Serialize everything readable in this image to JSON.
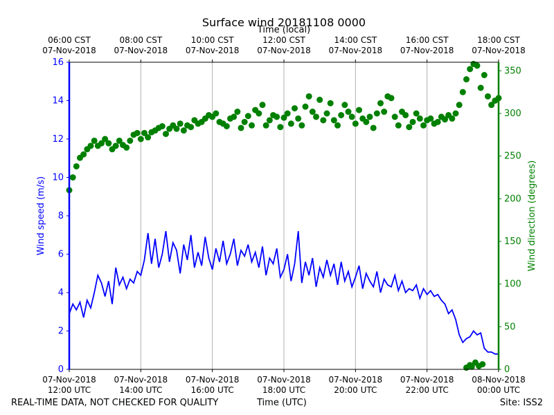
{
  "chart_data": {
    "type": "line",
    "title": "Surface wind 20181108 0000",
    "top_axis_label": "Time (local)",
    "xlabel": "Time (UTC)",
    "ylabel_left": "Wind speed (m/s)",
    "ylabel_right": "Wind direction (degrees)",
    "xlim_hours_utc": [
      12,
      24
    ],
    "ylim_left": [
      0,
      16
    ],
    "ylim_right": [
      0,
      360
    ],
    "left_ticks": [
      "0",
      "2",
      "4",
      "6",
      "8",
      "10",
      "12",
      "14",
      "16"
    ],
    "left_tick_values": [
      0,
      2,
      4,
      6,
      8,
      10,
      12,
      14,
      16
    ],
    "right_ticks": [
      "0",
      "50",
      "100",
      "150",
      "200",
      "250",
      "300",
      "350"
    ],
    "right_tick_values": [
      0,
      50,
      100,
      150,
      200,
      250,
      300,
      350
    ],
    "bottom_ticks": [
      {
        "hour": 12,
        "line1": "07-Nov-2018",
        "line2": "12:00 UTC"
      },
      {
        "hour": 14,
        "line1": "07-Nov-2018",
        "line2": "14:00 UTC"
      },
      {
        "hour": 16,
        "line1": "07-Nov-2018",
        "line2": "16:00 UTC"
      },
      {
        "hour": 18,
        "line1": "07-Nov-2018",
        "line2": "18:00 UTC"
      },
      {
        "hour": 20,
        "line1": "07-Nov-2018",
        "line2": "20:00 UTC"
      },
      {
        "hour": 22,
        "line1": "07-Nov-2018",
        "line2": "22:00 UTC"
      },
      {
        "hour": 24,
        "line1": "08-Nov-2018",
        "line2": "00:00 UTC"
      }
    ],
    "top_ticks": [
      {
        "hour": 12,
        "line1": "06:00 CST",
        "line2": "07-Nov-2018"
      },
      {
        "hour": 14,
        "line1": "08:00 CST",
        "line2": "07-Nov-2018"
      },
      {
        "hour": 16,
        "line1": "10:00 CST",
        "line2": "07-Nov-2018"
      },
      {
        "hour": 18,
        "line1": "12:00 CST",
        "line2": "07-Nov-2018"
      },
      {
        "hour": 20,
        "line1": "14:00 CST",
        "line2": "07-Nov-2018"
      },
      {
        "hour": 22,
        "line1": "16:00 CST",
        "line2": "07-Nov-2018"
      },
      {
        "hour": 24,
        "line1": "18:00 CST",
        "line2": "07-Nov-2018"
      }
    ],
    "series": [
      {
        "name": "Wind speed",
        "axis": "left",
        "style": "line",
        "color": "#0000ff",
        "x_hours": [
          12.0,
          12.1,
          12.2,
          12.3,
          12.4,
          12.5,
          12.6,
          12.7,
          12.8,
          12.9,
          13.0,
          13.1,
          13.2,
          13.3,
          13.4,
          13.5,
          13.6,
          13.7,
          13.8,
          13.9,
          14.0,
          14.1,
          14.2,
          14.3,
          14.4,
          14.5,
          14.6,
          14.7,
          14.8,
          14.9,
          15.0,
          15.1,
          15.2,
          15.3,
          15.4,
          15.5,
          15.6,
          15.7,
          15.8,
          15.9,
          16.0,
          16.1,
          16.2,
          16.3,
          16.4,
          16.5,
          16.6,
          16.7,
          16.8,
          16.9,
          17.0,
          17.1,
          17.2,
          17.3,
          17.4,
          17.5,
          17.6,
          17.7,
          17.8,
          17.9,
          18.0,
          18.1,
          18.2,
          18.3,
          18.4,
          18.5,
          18.6,
          18.7,
          18.8,
          18.9,
          19.0,
          19.1,
          19.2,
          19.3,
          19.4,
          19.5,
          19.6,
          19.7,
          19.8,
          19.9,
          20.0,
          20.1,
          20.2,
          20.3,
          20.4,
          20.5,
          20.6,
          20.7,
          20.8,
          20.9,
          21.0,
          21.1,
          21.2,
          21.3,
          21.4,
          21.5,
          21.6,
          21.7,
          21.8,
          21.9,
          22.0,
          22.1,
          22.2,
          22.3,
          22.4,
          22.5,
          22.6,
          22.7,
          22.8,
          22.9,
          23.0,
          23.1,
          23.2,
          23.3,
          23.4,
          23.5,
          23.6,
          23.7,
          23.8,
          23.9,
          24.0
        ],
        "values": [
          2.9,
          3.4,
          3.1,
          3.5,
          2.7,
          3.6,
          3.2,
          4.0,
          4.9,
          4.5,
          3.8,
          4.6,
          3.4,
          5.3,
          4.4,
          4.8,
          4.2,
          4.7,
          4.5,
          5.1,
          4.9,
          5.7,
          7.1,
          5.5,
          6.8,
          5.3,
          6.0,
          7.2,
          5.6,
          6.6,
          6.2,
          5.0,
          6.5,
          5.7,
          7.0,
          5.3,
          6.1,
          5.4,
          6.9,
          5.8,
          5.2,
          6.3,
          5.6,
          6.7,
          5.5,
          6.0,
          6.8,
          5.4,
          6.2,
          5.9,
          6.5,
          5.6,
          6.1,
          5.3,
          6.4,
          4.9,
          5.8,
          5.5,
          6.3,
          4.8,
          5.2,
          6.0,
          4.6,
          5.5,
          7.2,
          4.5,
          5.6,
          4.9,
          5.8,
          4.3,
          5.3,
          4.8,
          5.7,
          4.9,
          5.5,
          4.4,
          5.6,
          4.6,
          5.1,
          4.3,
          4.8,
          5.4,
          4.2,
          5.0,
          4.6,
          4.3,
          5.1,
          4.0,
          4.7,
          4.4,
          4.3,
          4.9,
          4.1,
          4.6,
          4.0,
          4.2,
          4.1,
          4.4,
          3.7,
          4.2,
          3.9,
          4.1,
          3.8,
          3.9,
          3.6,
          3.4,
          2.9,
          3.1,
          2.6,
          1.8,
          1.4,
          1.6,
          1.7,
          2.0,
          1.8,
          1.9,
          1.1,
          0.9,
          0.9,
          0.8,
          0.8
        ]
      },
      {
        "name": "Wind direction",
        "axis": "right",
        "style": "markers",
        "color": "#008000",
        "x_hours": [
          12.0,
          12.1,
          12.2,
          12.3,
          12.4,
          12.5,
          12.6,
          12.7,
          12.8,
          12.9,
          13.0,
          13.1,
          13.2,
          13.3,
          13.4,
          13.5,
          13.6,
          13.7,
          13.8,
          13.9,
          14.0,
          14.1,
          14.2,
          14.3,
          14.4,
          14.5,
          14.6,
          14.7,
          14.8,
          14.9,
          15.0,
          15.1,
          15.2,
          15.3,
          15.4,
          15.5,
          15.6,
          15.7,
          15.8,
          15.9,
          16.0,
          16.1,
          16.2,
          16.3,
          16.4,
          16.5,
          16.6,
          16.7,
          16.8,
          16.9,
          17.0,
          17.1,
          17.2,
          17.3,
          17.4,
          17.5,
          17.6,
          17.7,
          17.8,
          17.9,
          18.0,
          18.1,
          18.2,
          18.3,
          18.4,
          18.5,
          18.6,
          18.7,
          18.8,
          18.9,
          19.0,
          19.1,
          19.2,
          19.3,
          19.4,
          19.5,
          19.6,
          19.7,
          19.8,
          19.9,
          20.0,
          20.1,
          20.2,
          20.3,
          20.4,
          20.5,
          20.6,
          20.7,
          20.8,
          20.9,
          21.0,
          21.1,
          21.2,
          21.3,
          21.4,
          21.5,
          21.6,
          21.7,
          21.8,
          21.9,
          22.0,
          22.1,
          22.2,
          22.3,
          22.4,
          22.5,
          22.6,
          22.7,
          22.8,
          22.9,
          23.0,
          23.1,
          23.2,
          23.3,
          23.4,
          23.5,
          23.6,
          23.7,
          23.8,
          23.9,
          24.0
        ],
        "values": [
          210,
          225,
          238,
          248,
          252,
          258,
          262,
          268,
          262,
          265,
          270,
          265,
          258,
          262,
          268,
          263,
          260,
          268,
          275,
          277,
          270,
          277,
          272,
          278,
          280,
          283,
          285,
          276,
          282,
          286,
          282,
          288,
          280,
          286,
          284,
          292,
          288,
          290,
          294,
          298,
          296,
          300,
          290,
          288,
          285,
          294,
          296,
          302,
          283,
          290,
          297,
          286,
          304,
          300,
          310,
          286,
          292,
          298,
          296,
          284,
          295,
          300,
          288,
          306,
          294,
          286,
          308,
          320,
          302,
          296,
          316,
          292,
          300,
          312,
          292,
          286,
          298,
          310,
          302,
          296,
          288,
          304,
          294,
          290,
          296,
          283,
          300,
          312,
          302,
          320,
          318,
          296,
          286,
          302,
          298,
          284,
          290,
          300,
          294,
          286,
          292,
          294,
          288,
          290,
          296,
          293,
          298,
          294,
          300,
          310,
          325,
          340,
          352,
          358,
          356,
          330,
          345,
          320,
          310,
          315,
          318
        ],
        "extra_points": [
          {
            "x": 23.1,
            "y": 2
          },
          {
            "x": 23.2,
            "y": 5
          },
          {
            "x": 23.25,
            "y": 3
          },
          {
            "x": 23.35,
            "y": 8
          },
          {
            "x": 23.45,
            "y": 4
          },
          {
            "x": 23.55,
            "y": 6
          }
        ]
      }
    ]
  },
  "footer": {
    "left": "REAL-TIME DATA, NOT CHECKED FOR QUALITY",
    "center": "Time (UTC)",
    "right": "Site: ISS2"
  },
  "colors": {
    "speed": "#0000ff",
    "direction": "#008000",
    "grid": "#b0b0b0"
  }
}
